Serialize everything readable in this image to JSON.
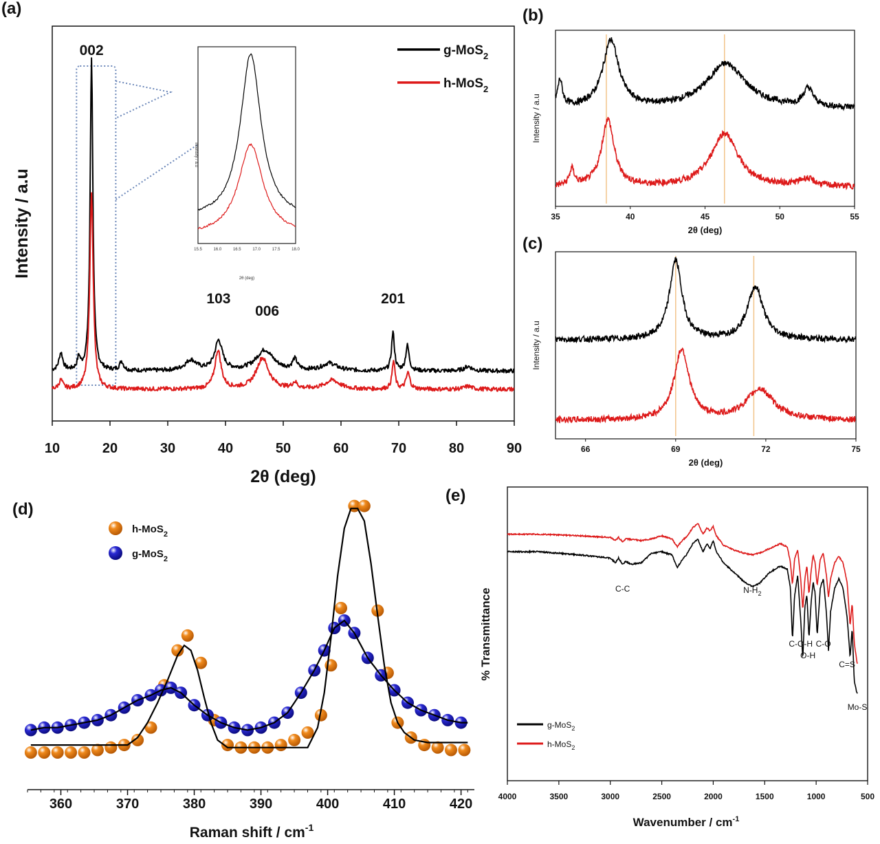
{
  "panels": {
    "a": {
      "label": "(a)"
    },
    "b": {
      "label": "(b)"
    },
    "c": {
      "label": "(c)"
    },
    "d": {
      "label": "(d)"
    },
    "e": {
      "label": "(e)"
    }
  },
  "colors": {
    "g": "#000000",
    "h": "#dd1a1a",
    "raman_h": "#f08a1c",
    "raman_g": "#2a2ad4",
    "guide": "#f2c48a",
    "box": "#6a86b8"
  },
  "chart_data": [
    {
      "id": "a",
      "type": "line",
      "xlabel": "2θ (deg)",
      "ylabel": "Intensity / a.u",
      "xlim": [
        10,
        90
      ],
      "xticks": [
        10,
        20,
        30,
        40,
        50,
        60,
        70,
        80,
        90
      ],
      "legend_position": "top-right",
      "series": [
        {
          "name": "g-MoS2",
          "name_main": "g-MoS",
          "name_sub": "2",
          "color": "#000000",
          "baseline": 0.62,
          "peaks": [
            [
              11.5,
              0.6,
              0.4
            ],
            [
              14.6,
              0.4,
              0.3
            ],
            [
              16.8,
              10.6,
              0.28
            ],
            [
              22.0,
              0.3,
              0.4
            ],
            [
              34.0,
              0.35,
              1.2
            ],
            [
              38.8,
              1.0,
              0.8
            ],
            [
              46.8,
              0.7,
              1.8
            ],
            [
              52.0,
              0.35,
              0.5
            ],
            [
              58.0,
              0.25,
              1.5
            ],
            [
              69.0,
              1.3,
              0.3
            ],
            [
              71.5,
              0.85,
              0.35
            ],
            [
              82.0,
              0.15,
              0.8
            ]
          ]
        },
        {
          "name": "h-MoS2",
          "name_main": "h-MoS",
          "name_sub": "2",
          "color": "#dd1a1a",
          "baseline": 0.0,
          "peaks": [
            [
              11.5,
              0.3,
              0.4
            ],
            [
              16.8,
              6.6,
              0.36
            ],
            [
              38.7,
              1.3,
              0.65
            ],
            [
              46.4,
              1.05,
              1.3
            ],
            [
              52.0,
              0.2,
              0.5
            ],
            [
              58.5,
              0.3,
              1.5
            ],
            [
              69.1,
              0.95,
              0.3
            ],
            [
              71.6,
              0.55,
              0.4
            ],
            [
              82.0,
              0.1,
              0.8
            ]
          ]
        }
      ],
      "annotations": [
        {
          "text": "002",
          "x": 16.8
        },
        {
          "text": "103",
          "x": 38.8
        },
        {
          "text": "006",
          "x": 46.5
        },
        {
          "text": "201",
          "x": 69.0
        }
      ],
      "inset": {
        "type": "line",
        "xlabel": "2θ (deg)",
        "ylabel": "Intensity / a.u",
        "xlim": [
          15.5,
          18.0
        ],
        "xticks": [
          "15.5",
          "16.0",
          "16.5",
          "17.0",
          "17.5",
          "18.0"
        ],
        "series": [
          {
            "name": "g-MoS2",
            "color": "#000000",
            "center": 16.85,
            "height": 1.0,
            "width": 0.32,
            "baseline": 0.1
          },
          {
            "name": "h-MoS2",
            "color": "#dd1a1a",
            "center": 16.85,
            "height": 0.55,
            "width": 0.38,
            "baseline": 0.0
          }
        ]
      }
    },
    {
      "id": "b",
      "type": "line",
      "xlabel": "2θ (deg)",
      "ylabel": "Intensity / a.u",
      "xlim": [
        35,
        55
      ],
      "xticks": [
        35,
        40,
        45,
        50,
        55
      ],
      "guides": [
        38.4,
        46.3
      ],
      "series": [
        {
          "name": "g-MoS2",
          "color": "#000000",
          "baseline": 1.0,
          "peaks": [
            [
              35.3,
              0.3,
              0.2
            ],
            [
              38.7,
              0.75,
              0.65
            ],
            [
              46.4,
              0.5,
              1.6
            ],
            [
              51.9,
              0.2,
              0.4
            ]
          ]
        },
        {
          "name": "h-MoS2",
          "color": "#dd1a1a",
          "baseline": 0.0,
          "peaks": [
            [
              36.1,
              0.18,
              0.2
            ],
            [
              38.5,
              0.75,
              0.5
            ],
            [
              46.3,
              0.6,
              1.1
            ],
            [
              51.8,
              0.08,
              0.6
            ]
          ]
        }
      ]
    },
    {
      "id": "c",
      "type": "line",
      "xlabel": "2θ (deg)",
      "ylabel": "Intensity / a.u",
      "xlim": [
        65,
        75
      ],
      "xticks": [
        66,
        69,
        72,
        75
      ],
      "guides": [
        69.0,
        71.6
      ],
      "series": [
        {
          "name": "g-MoS2",
          "color": "#000000",
          "baseline": 1.0,
          "peaks": [
            [
              69.0,
              0.9,
              0.25
            ],
            [
              71.65,
              0.6,
              0.32
            ]
          ]
        },
        {
          "name": "h-MoS2",
          "color": "#dd1a1a",
          "baseline": 0.0,
          "peaks": [
            [
              69.2,
              0.8,
              0.3
            ],
            [
              71.8,
              0.35,
              0.55
            ]
          ]
        }
      ]
    },
    {
      "id": "d",
      "type": "scatter",
      "xlabel": "Raman shift / cm",
      "xlabel_sup": "-1",
      "xlim": [
        355,
        422
      ],
      "xticks": [
        360,
        370,
        380,
        390,
        400,
        410,
        420
      ],
      "legend_position": "top-left",
      "series": [
        {
          "name": "h-MoS2",
          "name_main": "h-MoS",
          "name_sub": "2",
          "color": "#f08a1c",
          "x": [
            355.5,
            357.5,
            359.5,
            361.5,
            363.5,
            365.5,
            367.5,
            369.5,
            371.5,
            373.5,
            375.5,
            377.5,
            379.0,
            381.0,
            383.0,
            385.0,
            387.0,
            389.0,
            391.0,
            393.0,
            395.0,
            397.0,
            399.0,
            400.5,
            402.0,
            404.0,
            405.5,
            407.5,
            409.0,
            410.5,
            412.5,
            414.5,
            416.5,
            418.5,
            420.5
          ],
          "y": [
            0.0,
            0.0,
            0.0,
            0.0,
            0.0,
            0.01,
            0.02,
            0.03,
            0.05,
            0.1,
            0.27,
            0.41,
            0.47,
            0.36,
            0.13,
            0.03,
            0.02,
            0.02,
            0.02,
            0.03,
            0.05,
            0.08,
            0.15,
            0.35,
            0.58,
            0.99,
            0.99,
            0.57,
            0.32,
            0.12,
            0.06,
            0.03,
            0.02,
            0.01,
            0.01
          ]
        },
        {
          "name": "g-MoS2",
          "name_main": "g-MoS",
          "name_sub": "2",
          "color": "#2a2ad4",
          "x": [
            355.5,
            357.5,
            359.5,
            361.5,
            363.5,
            365.5,
            367.5,
            369.5,
            371.5,
            373.5,
            375.0,
            376.5,
            378.0,
            380.0,
            382.0,
            384.0,
            386.0,
            388.0,
            390.0,
            392.0,
            394.0,
            396.0,
            398.0,
            399.5,
            401.0,
            402.5,
            404.0,
            406.0,
            408.0,
            410.0,
            412.0,
            414.0,
            416.0,
            418.0,
            420.0
          ],
          "y": [
            0.09,
            0.1,
            0.1,
            0.11,
            0.12,
            0.13,
            0.15,
            0.18,
            0.21,
            0.23,
            0.25,
            0.26,
            0.24,
            0.19,
            0.15,
            0.12,
            0.1,
            0.09,
            0.1,
            0.12,
            0.16,
            0.24,
            0.33,
            0.41,
            0.5,
            0.53,
            0.48,
            0.38,
            0.31,
            0.25,
            0.2,
            0.17,
            0.15,
            0.13,
            0.12
          ]
        }
      ],
      "fit": {
        "color": "#000000",
        "x": [
          355.5,
          370,
          371.5,
          373,
          374.5,
          376,
          377.5,
          378.5,
          379.5,
          380.5,
          381.5,
          382.5,
          383.5,
          385,
          386,
          397,
          398.5,
          399.5,
          400.5,
          401.5,
          402.5,
          403.5,
          404.5,
          405.5,
          406.5,
          407.5,
          408.5,
          409.5,
          410.5,
          411.5,
          413,
          415,
          421
        ],
        "y": [
          0.03,
          0.03,
          0.06,
          0.12,
          0.2,
          0.29,
          0.39,
          0.43,
          0.41,
          0.33,
          0.22,
          0.12,
          0.05,
          0.02,
          0.02,
          0.02,
          0.1,
          0.24,
          0.46,
          0.71,
          0.9,
          0.98,
          0.98,
          0.93,
          0.76,
          0.55,
          0.35,
          0.2,
          0.12,
          0.08,
          0.05,
          0.04,
          0.04
        ]
      }
    },
    {
      "id": "e",
      "type": "line",
      "xlabel": "Wavenumber / cm",
      "xlabel_sup": "-1",
      "ylabel": "% Transmittance",
      "xlim": [
        4000,
        500
      ],
      "xticks": [
        4000,
        3500,
        3000,
        2500,
        2000,
        1500,
        1000,
        500
      ],
      "legend_position": "bottom-left",
      "series": [
        {
          "name": "g-MoS2",
          "name_main": "g-MoS",
          "name_sub": "2",
          "color": "#000000",
          "x": [
            4000,
            3700,
            3300,
            3000,
            2950,
            2920,
            2880,
            2850,
            2800,
            2700,
            2600,
            2500,
            2400,
            2350,
            2300,
            2250,
            2200,
            2150,
            2100,
            2060,
            2030,
            2000,
            1970,
            1900,
            1800,
            1700,
            1620,
            1550,
            1450,
            1350,
            1280,
            1250,
            1230,
            1210,
            1180,
            1150,
            1130,
            1110,
            1090,
            1070,
            1050,
            1030,
            1010,
            990,
            960,
            930,
            900,
            880,
            860,
            820,
            780,
            740,
            700,
            670,
            650,
            630,
            610,
            600
          ],
          "y": [
            0.07,
            0.07,
            0.09,
            0.11,
            0.14,
            0.11,
            0.15,
            0.13,
            0.15,
            0.14,
            0.08,
            0.07,
            0.09,
            0.17,
            0.12,
            0.08,
            0.02,
            -0.01,
            0.07,
            0.02,
            0.05,
            0.0,
            0.07,
            0.14,
            0.2,
            0.26,
            0.29,
            0.27,
            0.2,
            0.16,
            0.18,
            0.3,
            0.63,
            0.35,
            0.22,
            0.5,
            0.75,
            0.42,
            0.34,
            0.62,
            0.4,
            0.26,
            0.33,
            0.6,
            0.3,
            0.24,
            0.46,
            0.7,
            0.45,
            0.3,
            0.24,
            0.3,
            0.48,
            0.74,
            0.55,
            0.88,
            0.95,
            0.97
          ]
        },
        {
          "name": "h-MoS2",
          "name_main": "h-MoS",
          "name_sub": "2",
          "color": "#dd1a1a",
          "x": [
            4000,
            3700,
            3300,
            3000,
            2950,
            2920,
            2880,
            2850,
            2700,
            2600,
            2500,
            2400,
            2350,
            2300,
            2250,
            2200,
            2150,
            2100,
            2060,
            2030,
            2000,
            1970,
            1900,
            1800,
            1700,
            1620,
            1550,
            1450,
            1350,
            1280,
            1250,
            1230,
            1210,
            1180,
            1150,
            1130,
            1110,
            1090,
            1070,
            1050,
            1030,
            1010,
            990,
            960,
            930,
            900,
            880,
            860,
            820,
            780,
            740,
            700,
            670,
            650,
            630,
            610,
            600
          ],
          "y": [
            0.02,
            0.02,
            0.03,
            0.04,
            0.06,
            0.04,
            0.07,
            0.05,
            0.06,
            0.05,
            0.03,
            0.05,
            0.1,
            0.06,
            0.03,
            -0.02,
            -0.05,
            0.02,
            -0.02,
            0.0,
            -0.03,
            0.03,
            0.09,
            0.12,
            0.14,
            0.15,
            0.14,
            0.11,
            0.08,
            0.1,
            0.2,
            0.34,
            0.18,
            0.12,
            0.3,
            0.5,
            0.3,
            0.22,
            0.4,
            0.26,
            0.15,
            0.2,
            0.35,
            0.18,
            0.14,
            0.28,
            0.42,
            0.3,
            0.2,
            0.16,
            0.2,
            0.32,
            0.6,
            0.45,
            0.7,
            0.8,
            0.84
          ]
        }
      ],
      "annotations": [
        {
          "text": "C-C",
          "x": 2880
        },
        {
          "text": "N-H",
          "sub": "2",
          "x": 1620
        },
        {
          "text": "C-O-H",
          "x": 1150
        },
        {
          "text": "O-H",
          "x": 1080
        },
        {
          "text": "C-O",
          "x": 930
        },
        {
          "text": "C=S",
          "x": 700
        },
        {
          "text": "Mo-S",
          "x": 600
        }
      ]
    }
  ]
}
